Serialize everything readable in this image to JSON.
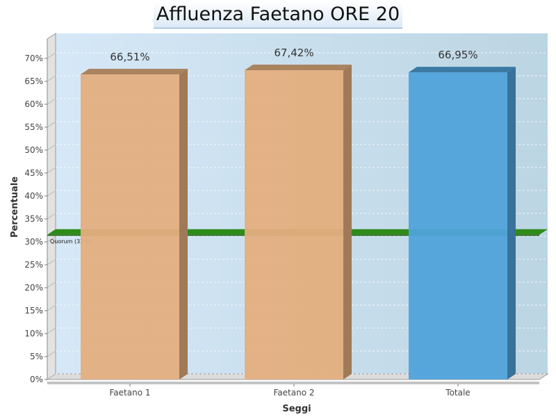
{
  "chart_data": {
    "type": "bar",
    "title": "Affluenza Faetano ORE 20",
    "xlabel": "Seggi",
    "ylabel": "Percentuale",
    "categories": [
      "Faetano 1",
      "Faetano 2",
      "Totale"
    ],
    "values": [
      66.51,
      67.42,
      66.95
    ],
    "value_labels": [
      "66,51%",
      "67,42%",
      "66,95%"
    ],
    "bar_colors": [
      "#e3ae7e",
      "#e3ae7e",
      "#50a3db"
    ],
    "ylim": [
      0,
      70
    ],
    "yticks": [
      0,
      5,
      10,
      15,
      20,
      25,
      30,
      35,
      40,
      45,
      50,
      55,
      60,
      65,
      70
    ],
    "ytick_labels": [
      "0%",
      "5%",
      "10%",
      "15%",
      "20%",
      "25%",
      "30%",
      "35%",
      "40%",
      "45%",
      "50%",
      "55%",
      "60%",
      "65%",
      "70%"
    ],
    "grid": true,
    "quorum": {
      "value": 32,
      "label": "Quorum (32%)",
      "color": "#2e8b1a"
    }
  }
}
